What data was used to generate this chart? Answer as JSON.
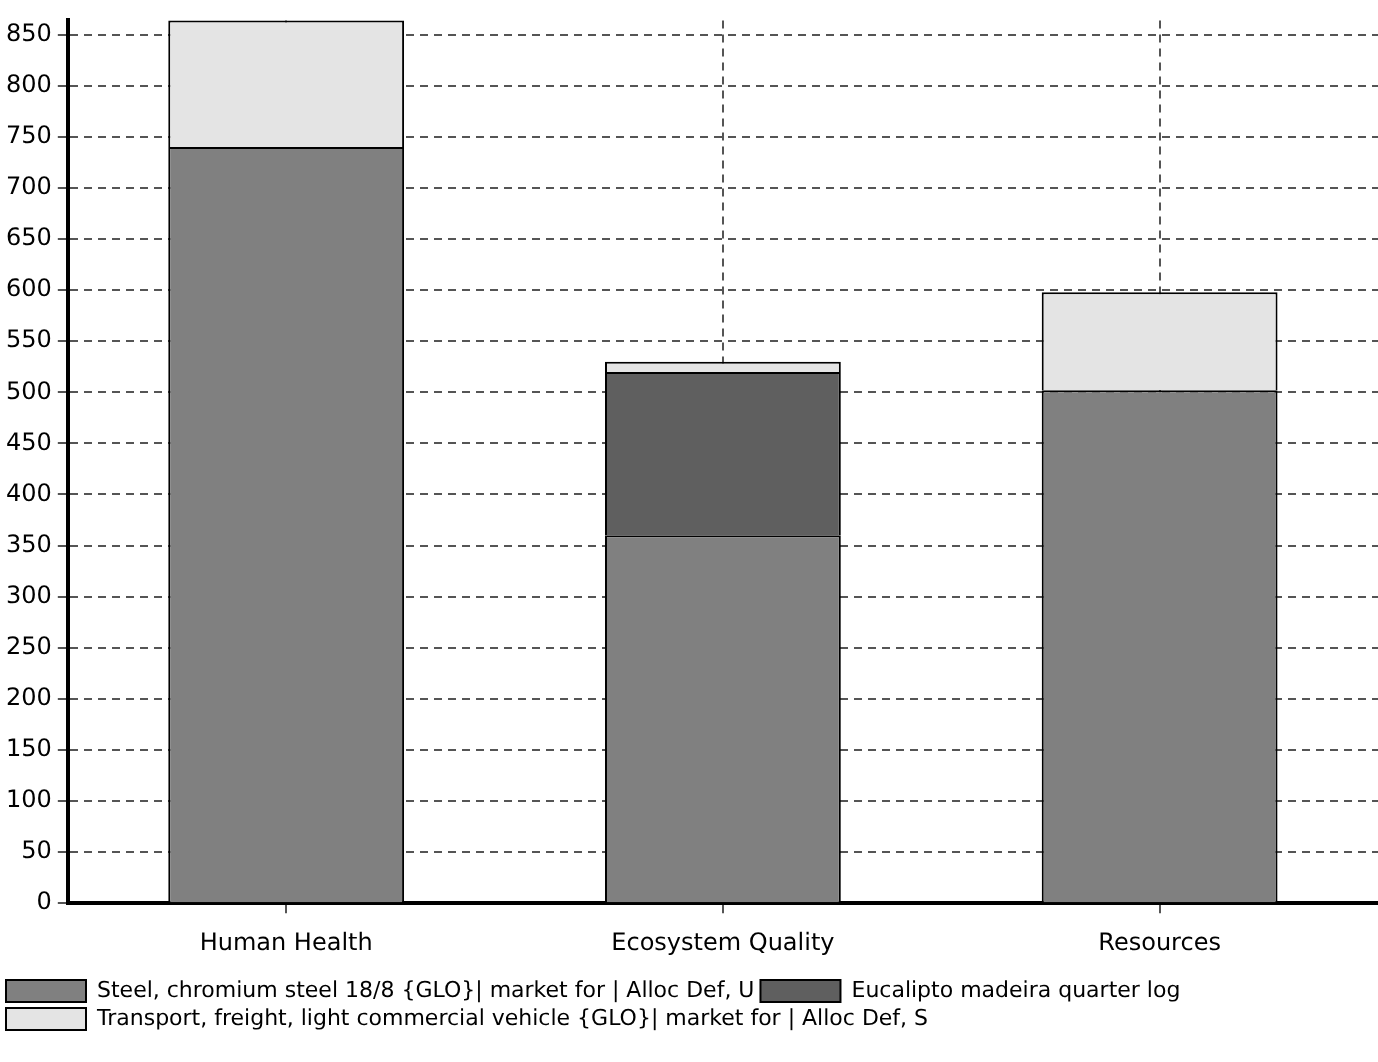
{
  "chart_data": {
    "type": "bar",
    "stacked": true,
    "categories": [
      "Human Health",
      "Ecosystem Quality",
      "Resources"
    ],
    "series": [
      {
        "name": "Steel, chromium steel 18/8 {GLO}| market for | Alloc Def, U",
        "color": "#808080",
        "values": [
          740,
          360,
          502
        ]
      },
      {
        "name": "Eucalipto madeira quarter log",
        "color": "#5f5f5f",
        "values": [
          0,
          160,
          0
        ]
      },
      {
        "name": "Transport, freight, light commercial vehicle {GLO}| market for | Alloc Def, S",
        "color": "#e4e4e4",
        "values": [
          124,
          10,
          96
        ]
      }
    ],
    "ylim": [
      0,
      864
    ],
    "yticks": [
      0,
      50,
      100,
      150,
      200,
      250,
      300,
      350,
      400,
      450,
      500,
      550,
      600,
      650,
      700,
      750,
      800,
      850
    ],
    "grid": true,
    "legend": "bottom"
  }
}
